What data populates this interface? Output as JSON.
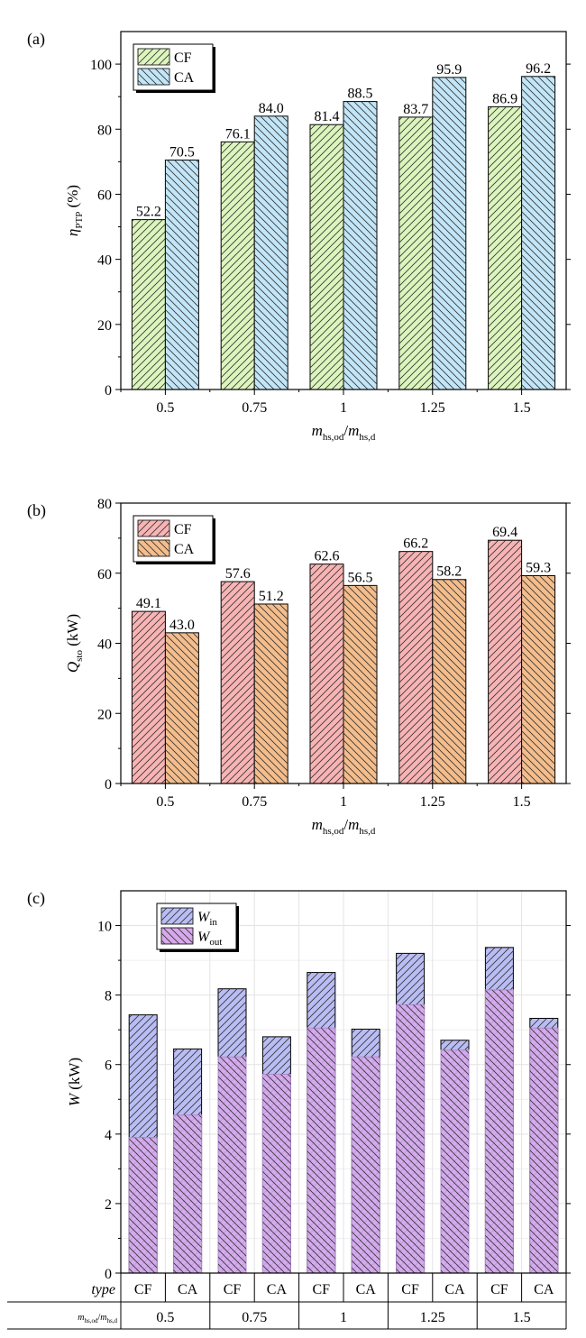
{
  "chart_data": [
    {
      "panel_label": "(a)",
      "type": "bar",
      "categories": [
        "0.5",
        "0.75",
        "1",
        "1.25",
        "1.5"
      ],
      "series": [
        {
          "name": "CF",
          "values": [
            52.2,
            76.1,
            81.4,
            83.7,
            86.9
          ],
          "color": "#dcf5bd",
          "hatch": "fwd"
        },
        {
          "name": "CA",
          "values": [
            70.5,
            84.0,
            88.5,
            95.9,
            96.2
          ],
          "color": "#c2e6f7",
          "hatch": "back"
        }
      ],
      "data_labels": [
        [
          "52.2",
          "76.1",
          "81.4",
          "83.7",
          "86.9"
        ],
        [
          "70.5",
          "84.0",
          "88.5",
          "95.9",
          "96.2"
        ]
      ],
      "ylabel": {
        "main": "η",
        "sub": "PTP",
        "unit": " (%)"
      },
      "xlabel": {
        "m1": "m",
        "sub1": "hs,od",
        "slash": "/",
        "m2": "m",
        "sub2": "hs,d"
      },
      "ylim": [
        0,
        110
      ],
      "yticks": [
        0,
        20,
        40,
        60,
        80,
        100
      ],
      "legend": "top-left",
      "grid": false
    },
    {
      "panel_label": "(b)",
      "type": "bar",
      "categories": [
        "0.5",
        "0.75",
        "1",
        "1.25",
        "1.5"
      ],
      "series": [
        {
          "name": "CF",
          "values": [
            49.1,
            57.6,
            62.6,
            66.2,
            69.4
          ],
          "color": "#f8b4b4",
          "hatch": "fwd"
        },
        {
          "name": "CA",
          "values": [
            43.0,
            51.2,
            56.5,
            58.2,
            59.3
          ],
          "color": "#f4bd8c",
          "hatch": "back"
        }
      ],
      "data_labels": [
        [
          "49.1",
          "57.6",
          "62.6",
          "66.2",
          "69.4"
        ],
        [
          "43.0",
          "51.2",
          "56.5",
          "58.2",
          "59.3"
        ]
      ],
      "ylabel": {
        "main": "Q",
        "sub": "sto",
        "unit": " (kW)"
      },
      "xlabel": {
        "m1": "m",
        "sub1": "hs,od",
        "slash": "/",
        "m2": "m",
        "sub2": "hs,d"
      },
      "ylim": [
        0,
        80
      ],
      "yticks": [
        0,
        20,
        40,
        60,
        80
      ],
      "legend": "top-left",
      "grid": false
    },
    {
      "panel_label": "(c)",
      "type": "bar",
      "mode": "overlap",
      "categories": [
        "CF",
        "CA",
        "CF",
        "CA",
        "CF",
        "CA",
        "CF",
        "CA",
        "CF",
        "CA"
      ],
      "series": [
        {
          "name": "W_in",
          "label_main": "W",
          "label_sub": "in",
          "values": [
            7.43,
            6.45,
            8.18,
            6.8,
            8.65,
            7.02,
            9.2,
            6.7,
            9.37,
            7.33
          ],
          "color": "#b9bdf4",
          "hatch": "fwd"
        },
        {
          "name": "W_out",
          "label_main": "W",
          "label_sub": "out",
          "values": [
            3.9,
            4.55,
            6.22,
            5.72,
            7.05,
            6.22,
            7.72,
            6.42,
            8.15,
            7.05
          ],
          "color": "#d8a8ec",
          "hatch": "back"
        }
      ],
      "table_row_labels": [
        "type",
        "m_hs,od/m_hs,d"
      ],
      "type_row": [
        "CF",
        "CA",
        "CF",
        "CA",
        "CF",
        "CA",
        "CF",
        "CA",
        "CF",
        "CA"
      ],
      "group_row": [
        "0.5",
        "0.75",
        "1",
        "1.25",
        "1.5"
      ],
      "ylabel": {
        "main": "W",
        "unit": " (kW)"
      },
      "ylim": [
        0,
        11
      ],
      "yticks": [
        0,
        2,
        4,
        6,
        8,
        10
      ],
      "legend": "top-left",
      "grid": true
    }
  ]
}
